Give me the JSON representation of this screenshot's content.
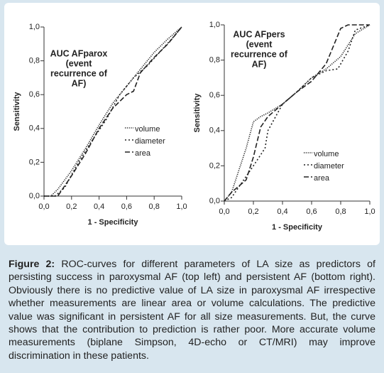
{
  "chart_data": [
    {
      "type": "line",
      "title_lines": [
        "AUC AFparox",
        "(event",
        "recurrence of",
        "AF)"
      ],
      "x_label": "1 - Specificity",
      "y_label": "Sensitivity",
      "xlim": [
        0,
        1
      ],
      "ylim": [
        0,
        1
      ],
      "xticks": [
        {
          "value": 0,
          "label": "0,0"
        },
        {
          "value": 0.2,
          "label": "0,2"
        },
        {
          "value": 0.4,
          "label": "0,4"
        },
        {
          "value": 0.6,
          "label": "0,6"
        },
        {
          "value": 0.8,
          "label": "0,8"
        },
        {
          "value": 1,
          "label": "1,0"
        }
      ],
      "yticks": [
        {
          "value": 0,
          "label": "0,0"
        },
        {
          "value": 0.2,
          "label": "0,2"
        },
        {
          "value": 0.4,
          "label": "0,4"
        },
        {
          "value": 0.6,
          "label": "0,6"
        },
        {
          "value": 0.8,
          "label": "0,8"
        },
        {
          "value": 1,
          "label": "1,0"
        }
      ],
      "series": [
        {
          "name": "volume",
          "color": "#222222",
          "dash": "1.2,1.6",
          "x": [
            0,
            0.05,
            0.1,
            0.2,
            0.3,
            0.4,
            0.5,
            0.6,
            0.7,
            0.8,
            0.9,
            1
          ],
          "values": [
            0,
            0,
            0.04,
            0.15,
            0.28,
            0.42,
            0.55,
            0.65,
            0.75,
            0.85,
            0.93,
            1
          ]
        },
        {
          "name": "diameter",
          "color": "#222222",
          "dash": "2,3",
          "x": [
            0,
            0.08,
            0.15,
            0.25,
            0.35,
            0.45,
            0.55,
            0.65,
            0.75,
            0.85,
            0.95,
            1
          ],
          "values": [
            0,
            0,
            0.05,
            0.2,
            0.33,
            0.45,
            0.6,
            0.7,
            0.77,
            0.86,
            0.95,
            1
          ]
        },
        {
          "name": "area",
          "color": "#222222",
          "dash": "7,3",
          "x": [
            0,
            0.1,
            0.2,
            0.3,
            0.4,
            0.5,
            0.6,
            0.65,
            0.7,
            0.8,
            0.9,
            1
          ],
          "values": [
            0,
            0,
            0.12,
            0.25,
            0.4,
            0.52,
            0.6,
            0.62,
            0.73,
            0.82,
            0.9,
            1
          ]
        }
      ]
    },
    {
      "type": "line",
      "title_lines": [
        "AUC AFpers",
        "(event",
        "recurrence of",
        "AF)"
      ],
      "x_label": "1 - Specificity",
      "y_label": "Sensitivity",
      "xlim": [
        0,
        1
      ],
      "ylim": [
        0,
        1
      ],
      "xticks": [
        {
          "value": 0,
          "label": "0,0"
        },
        {
          "value": 0.2,
          "label": "0,2"
        },
        {
          "value": 0.4,
          "label": "0,4"
        },
        {
          "value": 0.6,
          "label": "0,6"
        },
        {
          "value": 0.8,
          "label": "0,8"
        },
        {
          "value": 1,
          "label": "1,0"
        }
      ],
      "yticks": [
        {
          "value": 0,
          "label": "0,0"
        },
        {
          "value": 0.2,
          "label": "0,2"
        },
        {
          "value": 0.4,
          "label": "0,4"
        },
        {
          "value": 0.6,
          "label": "0,6"
        },
        {
          "value": 0.8,
          "label": "0,8"
        },
        {
          "value": 1,
          "label": "1,0"
        }
      ],
      "series": [
        {
          "name": "volume",
          "color": "#222222",
          "dash": "1.2,1.6",
          "x": [
            0,
            0.05,
            0.15,
            0.2,
            0.25,
            0.3,
            0.4,
            0.5,
            0.6,
            0.7,
            0.8,
            0.9,
            1
          ],
          "values": [
            0,
            0.05,
            0.3,
            0.45,
            0.48,
            0.5,
            0.55,
            0.62,
            0.7,
            0.75,
            0.82,
            0.95,
            1
          ]
        },
        {
          "name": "diameter",
          "color": "#222222",
          "dash": "2,3",
          "x": [
            0,
            0.05,
            0.1,
            0.2,
            0.28,
            0.3,
            0.4,
            0.5,
            0.6,
            0.7,
            0.78,
            0.85,
            0.9,
            1
          ],
          "values": [
            0,
            0.02,
            0.08,
            0.2,
            0.3,
            0.4,
            0.55,
            0.62,
            0.7,
            0.74,
            0.75,
            0.85,
            0.97,
            1
          ]
        },
        {
          "name": "area",
          "color": "#222222",
          "dash": "7,3",
          "x": [
            0,
            0.05,
            0.15,
            0.2,
            0.25,
            0.3,
            0.4,
            0.5,
            0.6,
            0.7,
            0.8,
            0.85,
            1
          ],
          "values": [
            0,
            0.05,
            0.12,
            0.25,
            0.42,
            0.48,
            0.55,
            0.62,
            0.68,
            0.78,
            0.98,
            1,
            1
          ]
        }
      ]
    }
  ],
  "caption": {
    "label": "Figure 2:",
    "text": "ROC-curves for different parameters of LA size as predictors of persisting success in paroxysmal AF (top left) and persistent AF (bottom right). Obviously there is no predictive value of LA size in paroxysmal AF irrespective whether measurements are linear area or volume calculations. The predictive value was significant in persistent AF for all size measurements. But, the curve shows that the contribution to prediction is rather poor. More accurate volume measurements (biplane Simpson, 4D-echo or CT/MRI) may improve discrimination in these patients."
  }
}
